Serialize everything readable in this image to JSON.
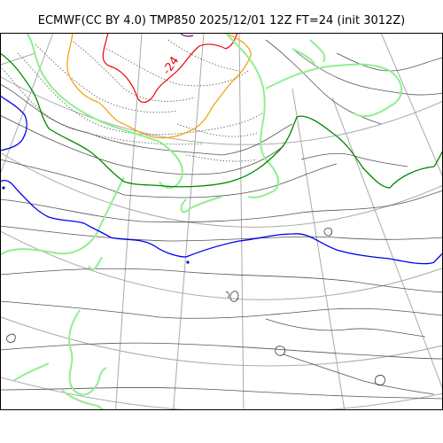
{
  "title": "ECMWF(CC BY 4.0) TMP850 2025/12/01 12Z FT=24 (init 3012Z)",
  "contour_label": "-24",
  "colors": {
    "grid": "#aaaaaa",
    "coast": "#333333",
    "isotherm_dark": "#555555",
    "iso_blue": "#0000ee",
    "iso_green": "#008800",
    "iso_lightgreen": "#90ee90",
    "iso_orange": "#f0a000",
    "iso_red": "#ee0000",
    "iso_purple": "#800080",
    "label_red": "#ee0000"
  }
}
